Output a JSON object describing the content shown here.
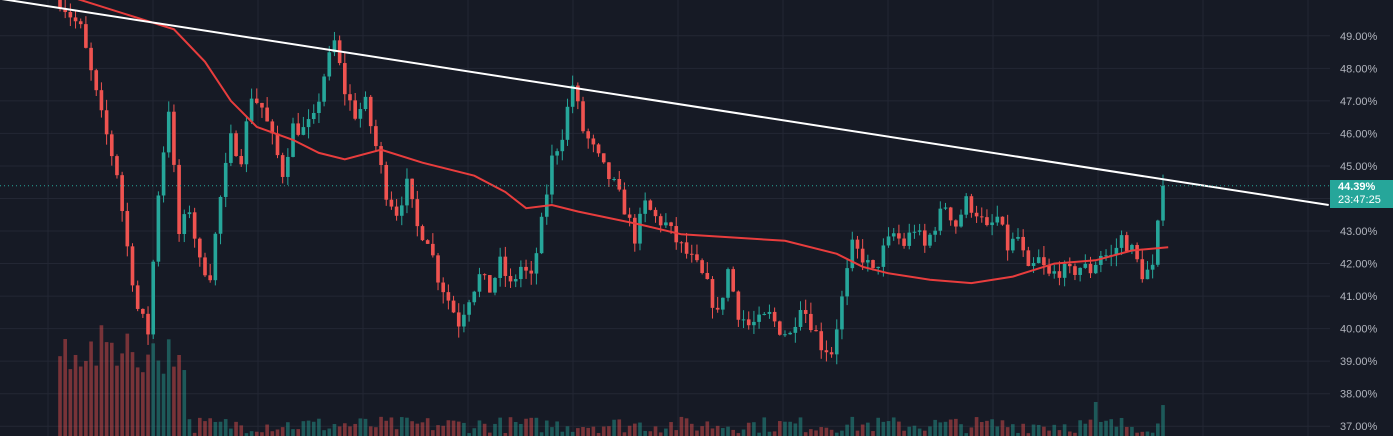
{
  "chart_data": {
    "type": "candlestick",
    "y_axis": {
      "ylim": [
        36.7,
        50.1
      ],
      "unit": "%",
      "tick_labels": [
        "37.00%",
        "38.00%",
        "39.00%",
        "40.00%",
        "41.00%",
        "42.00%",
        "43.00%",
        "44.00%",
        "45.00%",
        "46.00%",
        "47.00%",
        "48.00%",
        "49.00%"
      ]
    },
    "grid": true,
    "last_price": {
      "label": "44.39%",
      "value": 44.39,
      "countdown": "23:47:25"
    },
    "close_path": [
      [
        0,
        50.1
      ],
      [
        4,
        49.2
      ],
      [
        8,
        46.5
      ],
      [
        11,
        44.8
      ],
      [
        13,
        42.5
      ],
      [
        15,
        40.6
      ],
      [
        17,
        39.9
      ],
      [
        19,
        44.2
      ],
      [
        21,
        46.8
      ],
      [
        23,
        42.9
      ],
      [
        25,
        43.7
      ],
      [
        27,
        42.0
      ],
      [
        29,
        41.7
      ],
      [
        31,
        44.0
      ],
      [
        33,
        45.8
      ],
      [
        35,
        45.3
      ],
      [
        37,
        47.2
      ],
      [
        39,
        46.8
      ],
      [
        41,
        45.8
      ],
      [
        43,
        44.8
      ],
      [
        45,
        46.2
      ],
      [
        47,
        46.1
      ],
      [
        49,
        46.4
      ],
      [
        51,
        47.8
      ],
      [
        53,
        48.8
      ],
      [
        55,
        47.3
      ],
      [
        57,
        46.6
      ],
      [
        59,
        46.9
      ],
      [
        61,
        45.6
      ],
      [
        63,
        44.2
      ],
      [
        65,
        43.6
      ],
      [
        67,
        44.4
      ],
      [
        69,
        43.1
      ],
      [
        71,
        42.8
      ],
      [
        73,
        41.6
      ],
      [
        75,
        40.9
      ],
      [
        77,
        40.2
      ],
      [
        79,
        41.0
      ],
      [
        81,
        41.6
      ],
      [
        83,
        41.2
      ],
      [
        85,
        42.0
      ],
      [
        87,
        41.3
      ],
      [
        89,
        41.9
      ],
      [
        91,
        41.5
      ],
      [
        93,
        43.2
      ],
      [
        95,
        45.2
      ],
      [
        97,
        46.0
      ],
      [
        99,
        47.5
      ],
      [
        101,
        46.1
      ],
      [
        103,
        45.5
      ],
      [
        105,
        44.9
      ],
      [
        107,
        44.4
      ],
      [
        109,
        43.7
      ],
      [
        111,
        42.8
      ],
      [
        113,
        43.8
      ],
      [
        115,
        43.4
      ],
      [
        117,
        43.2
      ],
      [
        119,
        42.7
      ],
      [
        121,
        42.3
      ],
      [
        123,
        41.9
      ],
      [
        125,
        41.3
      ],
      [
        127,
        40.4
      ],
      [
        129,
        41.8
      ],
      [
        131,
        40.5
      ],
      [
        133,
        40.1
      ],
      [
        135,
        40.2
      ],
      [
        137,
        40.4
      ],
      [
        139,
        40.0
      ],
      [
        141,
        39.8
      ],
      [
        143,
        40.8
      ],
      [
        145,
        40.2
      ],
      [
        147,
        39.5
      ],
      [
        149,
        39.3
      ],
      [
        151,
        40.9
      ],
      [
        153,
        42.5
      ],
      [
        155,
        42.2
      ],
      [
        157,
        41.7
      ],
      [
        159,
        42.4
      ],
      [
        161,
        42.9
      ],
      [
        163,
        42.6
      ],
      [
        165,
        43.1
      ],
      [
        167,
        42.5
      ],
      [
        169,
        43.2
      ],
      [
        171,
        43.8
      ],
      [
        173,
        43.2
      ],
      [
        175,
        43.9
      ],
      [
        177,
        43.6
      ],
      [
        179,
        43.0
      ],
      [
        181,
        43.4
      ],
      [
        183,
        42.5
      ],
      [
        185,
        42.8
      ],
      [
        187,
        41.7
      ],
      [
        189,
        42.1
      ],
      [
        191,
        41.6
      ],
      [
        193,
        41.8
      ],
      [
        195,
        41.7
      ],
      [
        197,
        41.9
      ],
      [
        199,
        41.8
      ],
      [
        201,
        42.3
      ],
      [
        203,
        42.2
      ],
      [
        205,
        42.8
      ],
      [
        207,
        42.4
      ],
      [
        209,
        41.7
      ],
      [
        211,
        41.8
      ],
      [
        213,
        44.39
      ]
    ],
    "ma_path": [
      [
        0,
        50.3
      ],
      [
        22,
        49.2
      ],
      [
        28,
        48.2
      ],
      [
        33,
        47.0
      ],
      [
        38,
        46.2
      ],
      [
        45,
        45.8
      ],
      [
        50,
        45.4
      ],
      [
        55,
        45.2
      ],
      [
        62,
        45.5
      ],
      [
        70,
        45.1
      ],
      [
        80,
        44.7
      ],
      [
        86,
        44.2
      ],
      [
        90,
        43.7
      ],
      [
        95,
        43.8
      ],
      [
        100,
        43.6
      ],
      [
        106,
        43.4
      ],
      [
        112,
        43.2
      ],
      [
        120,
        42.9
      ],
      [
        130,
        42.8
      ],
      [
        140,
        42.7
      ],
      [
        150,
        42.3
      ],
      [
        155,
        41.9
      ],
      [
        160,
        41.7
      ],
      [
        168,
        41.5
      ],
      [
        176,
        41.4
      ],
      [
        184,
        41.6
      ],
      [
        192,
        42.0
      ],
      [
        200,
        42.1
      ],
      [
        207,
        42.4
      ],
      [
        214,
        42.5
      ]
    ],
    "trendline": [
      [
        0,
        50.2
      ],
      [
        245,
        43.8
      ]
    ],
    "x_range": [
      0,
      245
    ]
  }
}
